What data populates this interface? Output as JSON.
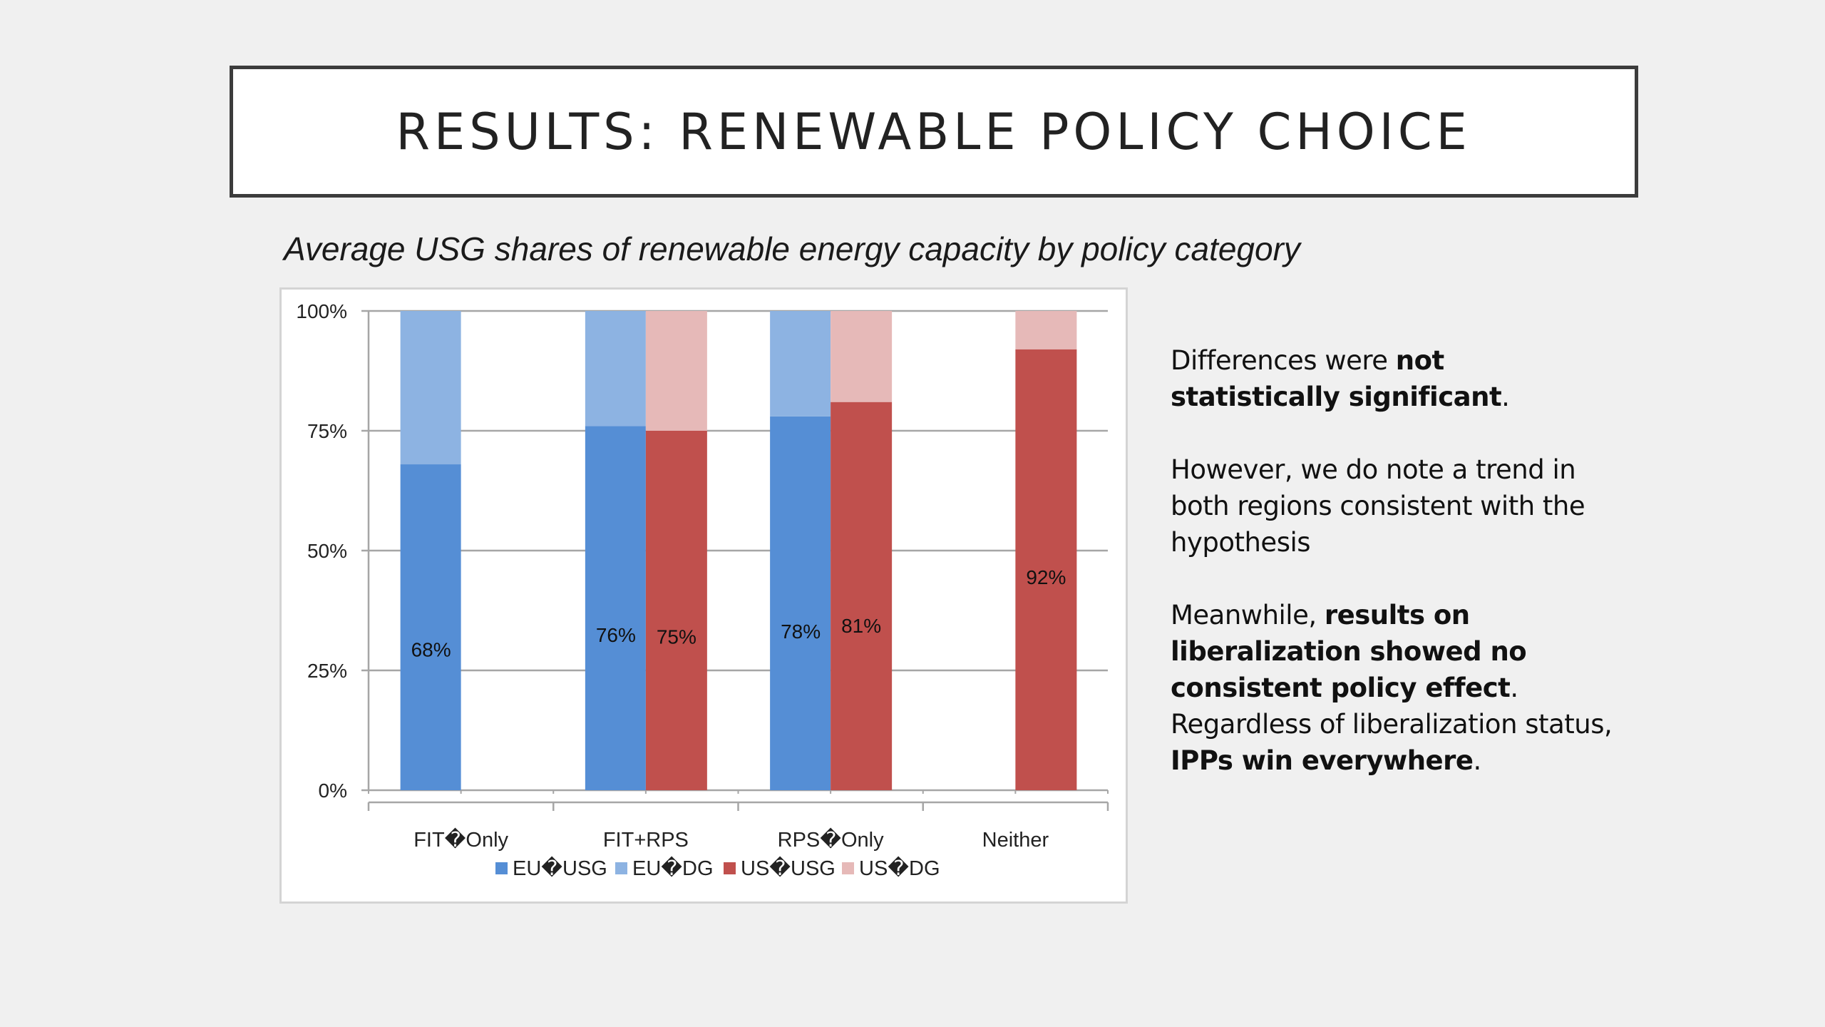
{
  "slide": {
    "title": "RESULTS: RENEWABLE POLICY CHOICE",
    "subtitle": "Average USG shares of renewable energy capacity by policy category",
    "paragraphs": [
      {
        "runs": [
          {
            "text": "Differences were ",
            "bold": false
          },
          {
            "text": "not statistically significant",
            "bold": true
          },
          {
            "text": ".",
            "bold": false
          }
        ]
      },
      {
        "runs": [
          {
            "text": "However, we do note a trend in both regions consistent with the hypothesis",
            "bold": false
          }
        ]
      },
      {
        "runs": [
          {
            "text": "Meanwhile, ",
            "bold": false
          },
          {
            "text": "results on liberalization showed no consistent policy effect",
            "bold": true
          },
          {
            "text": ". Regardless of liberalization status, ",
            "bold": false
          },
          {
            "text": "IPPs win everywhere",
            "bold": true
          },
          {
            "text": ".",
            "bold": false
          }
        ]
      }
    ]
  },
  "chart_data": {
    "type": "bar",
    "stacked": "percent",
    "title": "Average USG shares of renewable energy capacity by policy category",
    "xlabel": "",
    "ylabel": "",
    "ylim": [
      0,
      100
    ],
    "yticks": [
      "0%",
      "25%",
      "50%",
      "75%",
      "100%"
    ],
    "ytick_values": [
      0,
      25,
      50,
      75,
      100
    ],
    "grid": true,
    "legend_position": "bottom",
    "categories": [
      "FIT�Only",
      "FIT+RPS",
      "RPS�Only",
      "Neither"
    ],
    "stacks": [
      {
        "region": "EU",
        "series": [
          {
            "name": "EU�USG",
            "color": "#558ed5",
            "values": [
              68,
              76,
              78,
              null
            ],
            "labels": [
              "68%",
              "76%",
              "78%",
              null
            ]
          },
          {
            "name": "EU�DG",
            "color": "#8db3e2",
            "values": [
              32,
              24,
              22,
              null
            ],
            "labels": [
              null,
              null,
              null,
              null
            ]
          }
        ]
      },
      {
        "region": "US",
        "series": [
          {
            "name": "US�USG",
            "color": "#c0504d",
            "values": [
              null,
              75,
              81,
              92
            ],
            "labels": [
              null,
              "75%",
              "81%",
              "92%"
            ]
          },
          {
            "name": "US�DG",
            "color": "#e6b9b8",
            "values": [
              null,
              25,
              19,
              8
            ],
            "labels": [
              null,
              null,
              null,
              null
            ]
          }
        ]
      }
    ],
    "legend": [
      {
        "name": "EU�USG",
        "color": "#558ed5"
      },
      {
        "name": "EU�DG",
        "color": "#8db3e2"
      },
      {
        "name": "US�USG",
        "color": "#c0504d"
      },
      {
        "name": "US�DG",
        "color": "#e6b9b8"
      }
    ]
  }
}
